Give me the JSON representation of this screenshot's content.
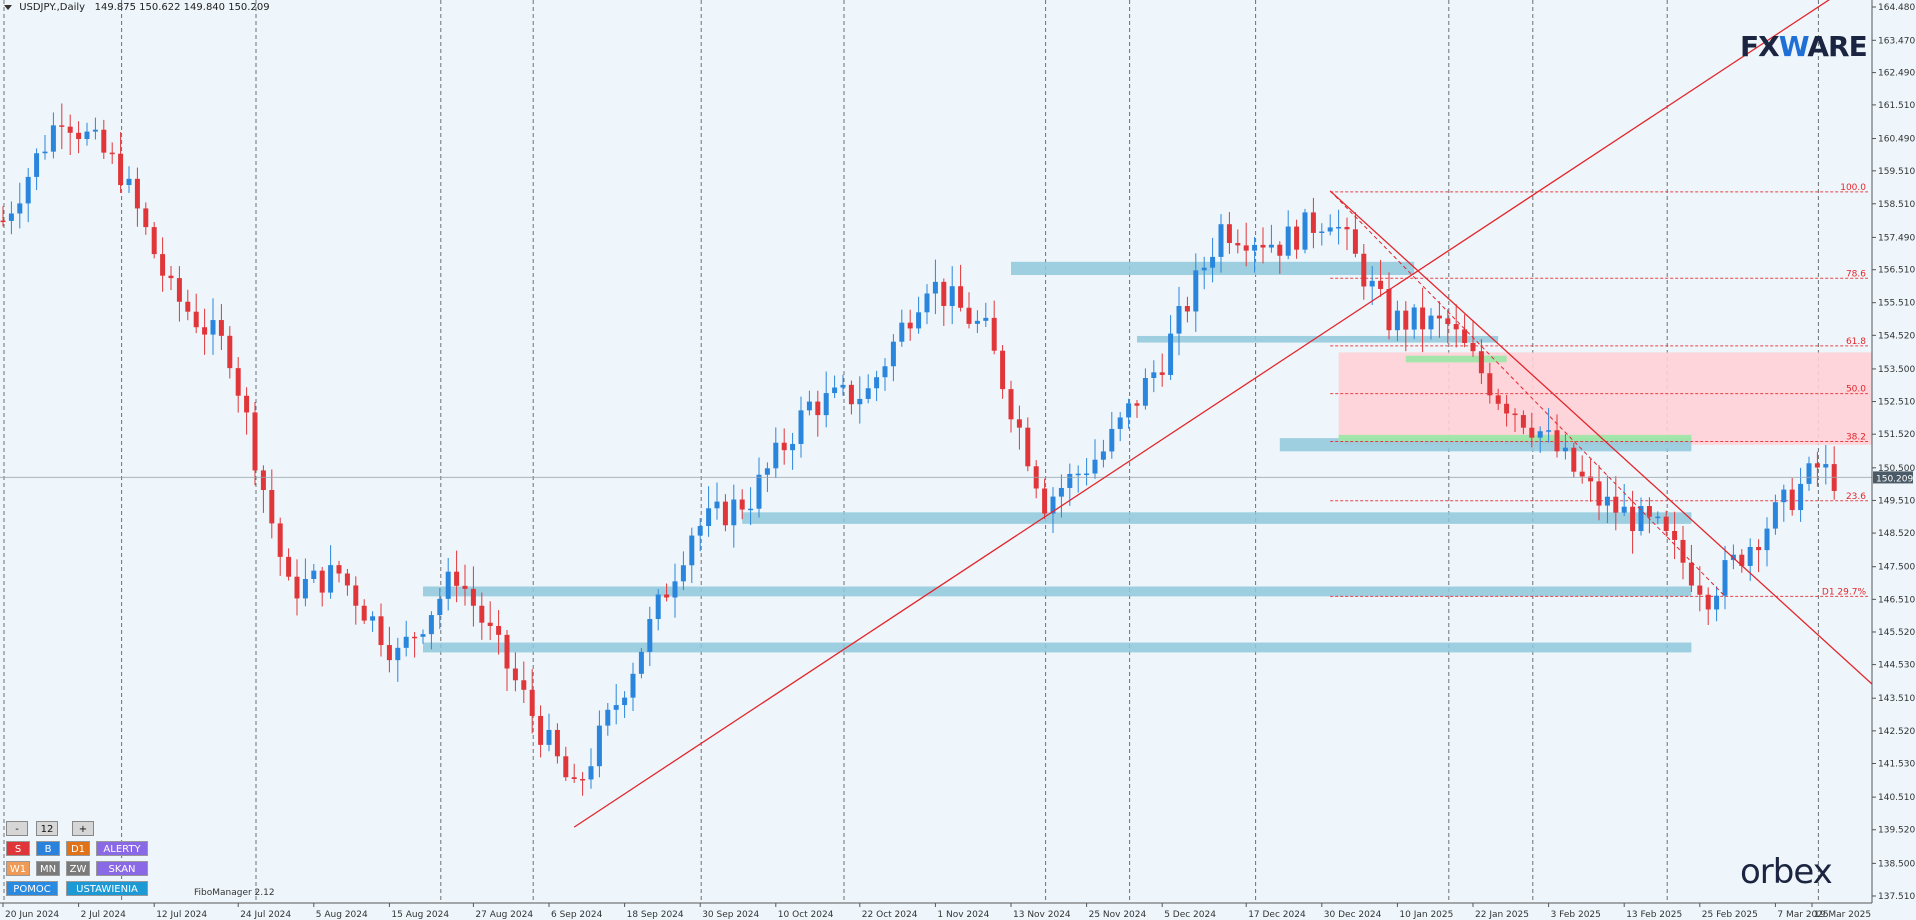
{
  "header": {
    "symbol": "USDJPY.,Daily",
    "ohlc": "149.875 150.622 149.840 150.209"
  },
  "logos": {
    "top_brand_pre": "FX",
    "top_brand_mid": "W",
    "top_brand_post": "ARE",
    "bottom_brand": "orbex"
  },
  "fibo_manager_label": "FiboManager 2.12",
  "panel": {
    "minus": "-",
    "value": "12",
    "plus": "+",
    "s": "S",
    "b": "B",
    "d1": "D1",
    "alerty": "ALERTY",
    "w1": "W1",
    "mn": "MN",
    "zw": "ZW",
    "skan": "SKAN",
    "pomoc": "POMOC",
    "ustawienia": "USTAWIENIA"
  },
  "colors": {
    "background": "#eef6fb",
    "bull": "#2a86dc",
    "bear": "#e0363a",
    "zone": "#8ec8dc",
    "trendline": "#e3262b",
    "pink_zone": "#ffd2d6",
    "green_zone": "#9ee6a8"
  },
  "chart_data": {
    "type": "candlestick",
    "symbol": "USDJPY.",
    "timeframe": "Daily",
    "y_ticks": [
      "164.480",
      "163.470",
      "162.490",
      "161.510",
      "160.490",
      "159.510",
      "158.510",
      "157.490",
      "156.510",
      "155.510",
      "154.520",
      "153.500",
      "152.510",
      "151.520",
      "150.500",
      "149.510",
      "148.520",
      "147.500",
      "146.510",
      "145.520",
      "144.530",
      "143.510",
      "142.520",
      "141.530",
      "140.510",
      "139.520",
      "138.500",
      "137.510"
    ],
    "ylim": [
      137.51,
      164.48
    ],
    "x_ticks": [
      "20 Jun 2024",
      "2 Jul 2024",
      "12 Jul 2024",
      "24 Jul 2024",
      "5 Aug 2024",
      "15 Aug 2024",
      "27 Aug 2024",
      "6 Sep 2024",
      "18 Sep 2024",
      "30 Sep 2024",
      "10 Oct 2024",
      "22 Oct 2024",
      "1 Nov 2024",
      "13 Nov 2024",
      "25 Nov 2024",
      "5 Dec 2024",
      "17 Dec 2024",
      "30 Dec 2024",
      "10 Jan 2025",
      "22 Jan 2025",
      "3 Feb 2025",
      "13 Feb 2025",
      "25 Feb 2025",
      "7 Mar 2025",
      "19 Mar 2025"
    ],
    "current_price": "150.209",
    "anchors": [
      [
        0,
        158.0
      ],
      [
        7,
        161.3
      ],
      [
        14,
        159.5
      ],
      [
        20,
        155.8
      ],
      [
        27,
        154.0
      ],
      [
        34,
        146.8
      ],
      [
        40,
        147.3
      ],
      [
        47,
        144.8
      ],
      [
        54,
        147.3
      ],
      [
        61,
        144.0
      ],
      [
        68,
        140.6
      ],
      [
        75,
        144.5
      ],
      [
        82,
        148.6
      ],
      [
        89,
        149.6
      ],
      [
        96,
        152.4
      ],
      [
        103,
        152.8
      ],
      [
        110,
        156.2
      ],
      [
        117,
        154.6
      ],
      [
        124,
        149.5
      ],
      [
        131,
        151.0
      ],
      [
        138,
        153.8
      ],
      [
        145,
        157.8
      ],
      [
        152,
        157.3
      ],
      [
        158,
        158.2
      ],
      [
        165,
        155.0
      ],
      [
        172,
        154.8
      ],
      [
        178,
        152.7
      ],
      [
        183,
        151.6
      ],
      [
        190,
        149.5
      ],
      [
        197,
        148.6
      ],
      [
        203,
        146.7
      ],
      [
        210,
        148.8
      ],
      [
        216,
        150.5
      ],
      [
        218,
        150.2
      ]
    ],
    "fib_levels": [
      {
        "label": "100.0",
        "price": 158.87
      },
      {
        "label": "78.6",
        "price": 156.25
      },
      {
        "label": "61.8",
        "price": 154.2
      },
      {
        "label": "50.0",
        "price": 152.75
      },
      {
        "label": "38.2",
        "price": 151.3
      },
      {
        "label": "23.6",
        "price": 149.5
      },
      {
        "label": "D1 29.7%",
        "price": 146.6
      }
    ],
    "support_resistance_zones": [
      {
        "x0": 120,
        "x1": 168,
        "y0": 156.35,
        "y1": 156.75
      },
      {
        "x0": 135,
        "x1": 178,
        "y0": 154.3,
        "y1": 154.5
      },
      {
        "x0": 152,
        "x1": 201,
        "y0": 151.0,
        "y1": 151.4
      },
      {
        "x0": 88,
        "x1": 201,
        "y0": 148.8,
        "y1": 149.15
      },
      {
        "x0": 50,
        "x1": 201,
        "y0": 146.6,
        "y1": 146.9
      },
      {
        "x0": 50,
        "x1": 201,
        "y0": 144.9,
        "y1": 145.2
      }
    ],
    "pink_zone": {
      "x0": 159,
      "x1": 223,
      "y0": 151.2,
      "y1": 154.0
    },
    "green_zones": [
      {
        "x0": 159,
        "x1": 201,
        "y0": 151.3,
        "y1": 151.5
      },
      {
        "x0": 167,
        "x1": 179,
        "y0": 153.7,
        "y1": 153.9
      }
    ],
    "trendlines": [
      {
        "x0": 68,
        "y0": 139.6,
        "x1": 218,
        "y1": 164.8
      },
      {
        "x0": 158,
        "y0": 158.9,
        "x1": 230,
        "y1": 142.2
      },
      {
        "x0": 158,
        "y0": 158.9,
        "x1": 205,
        "y1": 146.6
      }
    ],
    "separators": [
      0,
      14,
      30,
      52,
      63,
      83,
      100,
      124,
      134,
      149,
      172,
      182,
      198,
      216
    ]
  }
}
